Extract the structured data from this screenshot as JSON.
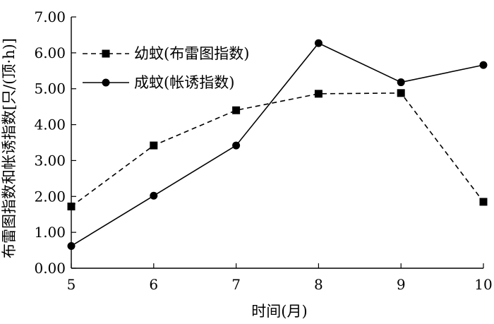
{
  "chart_data": {
    "type": "line",
    "xlabel": "时间(月)",
    "ylabel": "布雷图指数和帐诱指数[只/(顶·h)]",
    "x": [
      5,
      6,
      7,
      8,
      9,
      10
    ],
    "x_ticks": [
      "5",
      "6",
      "7",
      "8",
      "9",
      "10"
    ],
    "y_ticks": [
      "0.00",
      "1.00",
      "2.00",
      "3.00",
      "4.00",
      "5.00",
      "6.00",
      "7.00"
    ],
    "xlim": [
      5,
      10
    ],
    "ylim": [
      0,
      7
    ],
    "grid": false,
    "legend_position": "top-left",
    "series": [
      {
        "name": "幼蚊(布雷图指数)",
        "marker": "square",
        "line_style": "dashed",
        "color": "#000000",
        "values": [
          1.72,
          3.42,
          4.4,
          4.86,
          4.88,
          1.85
        ]
      },
      {
        "name": "成蚊(帐诱指数)",
        "marker": "circle",
        "line_style": "solid",
        "color": "#000000",
        "values": [
          0.62,
          2.02,
          3.42,
          6.27,
          5.18,
          5.66
        ]
      }
    ]
  }
}
